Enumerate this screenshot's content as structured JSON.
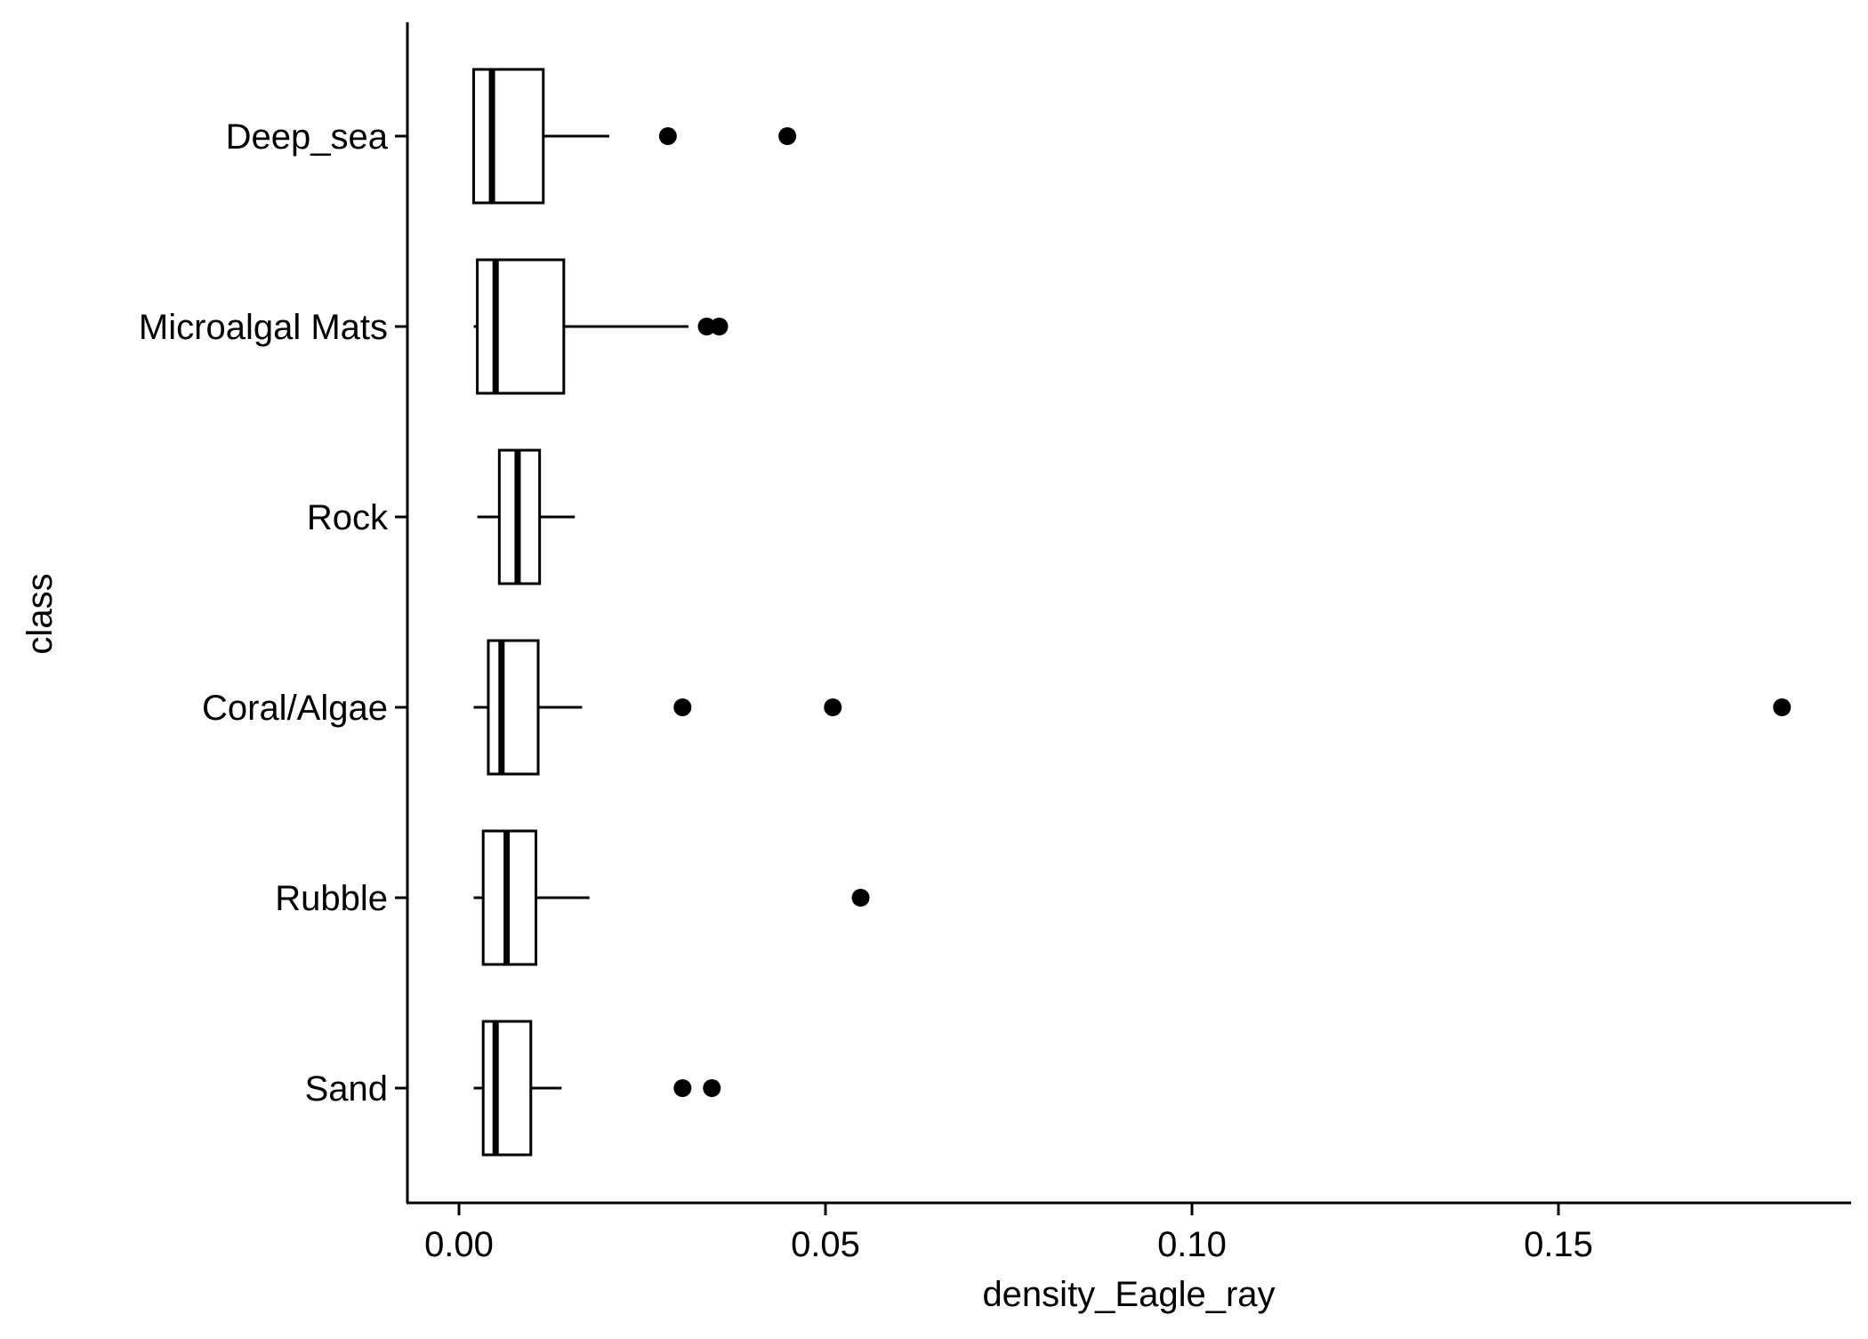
{
  "chart_data": {
    "type": "boxplot",
    "orientation": "horizontal",
    "xlabel": "density_Eagle_ray",
    "ylabel": "class",
    "xlim": [
      -0.007,
      0.19
    ],
    "x_ticks": [
      0.0,
      0.05,
      0.1,
      0.15
    ],
    "x_tick_labels": [
      "0.00",
      "0.05",
      "0.10",
      "0.15"
    ],
    "grid": false,
    "legend": "none",
    "categories": [
      "Deep_sea",
      "Microalgal Mats",
      "Rock",
      "Coral/Algae",
      "Rubble",
      "Sand"
    ],
    "boxes": [
      {
        "label": "Deep_sea",
        "whisker_low": 0.002,
        "q1": 0.002,
        "median": 0.0045,
        "q3": 0.0115,
        "whisker_high": 0.0205,
        "outliers": [
          0.0285,
          0.0448
        ]
      },
      {
        "label": "Microalgal Mats",
        "whisker_low": 0.002,
        "q1": 0.0025,
        "median": 0.005,
        "q3": 0.0143,
        "whisker_high": 0.0313,
        "outliers": [
          0.0338,
          0.0355
        ]
      },
      {
        "label": "Rock",
        "whisker_low": 0.0025,
        "q1": 0.0055,
        "median": 0.008,
        "q3": 0.011,
        "whisker_high": 0.0158,
        "outliers": []
      },
      {
        "label": "Coral/Algae",
        "whisker_low": 0.002,
        "q1": 0.004,
        "median": 0.0058,
        "q3": 0.0108,
        "whisker_high": 0.0168,
        "outliers": [
          0.0305,
          0.051,
          0.1805
        ]
      },
      {
        "label": "Rubble",
        "whisker_low": 0.002,
        "q1": 0.0033,
        "median": 0.0065,
        "q3": 0.0105,
        "whisker_high": 0.0178,
        "outliers": [
          0.0548
        ]
      },
      {
        "label": "Sand",
        "whisker_low": 0.002,
        "q1": 0.0033,
        "median": 0.005,
        "q3": 0.0098,
        "whisker_high": 0.014,
        "outliers": [
          0.0305,
          0.0345
        ]
      }
    ]
  }
}
